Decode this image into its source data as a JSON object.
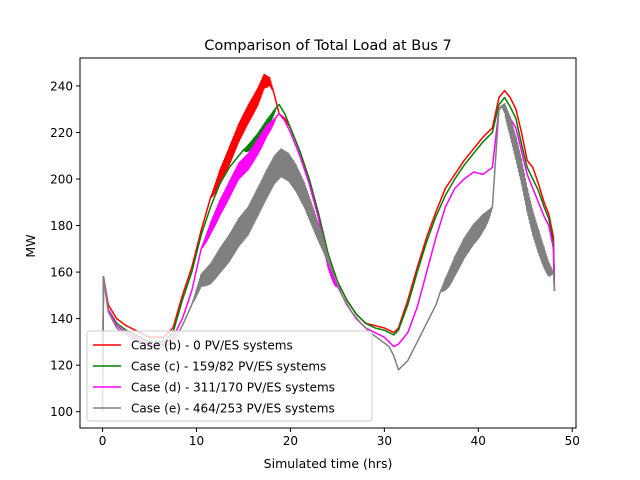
{
  "chart_data": {
    "type": "line",
    "title": "Comparison of Total Load at Bus 7",
    "xlabel": "Simulated time (hrs)",
    "ylabel": "MW",
    "xlim": [
      -2.4,
      50.4
    ],
    "ylim": [
      93.0,
      252.0
    ],
    "xticks": [
      0,
      10,
      20,
      30,
      40,
      50
    ],
    "yticks": [
      100,
      120,
      140,
      160,
      180,
      200,
      220,
      240
    ],
    "grid": false,
    "legend_position": "lower-left",
    "series": [
      {
        "name": "Case (b) - 0 PV/ES systems",
        "color": "#ff0000",
        "points": [
          [
            0.0,
            100
          ],
          [
            0.1,
            158
          ],
          [
            0.6,
            146
          ],
          [
            1.5,
            140
          ],
          [
            2.5,
            137
          ],
          [
            3.5,
            135
          ],
          [
            5.0,
            132
          ],
          [
            6.5,
            132
          ],
          [
            7.5,
            136
          ],
          [
            8.5,
            150
          ],
          [
            9.5,
            162
          ],
          [
            10.5,
            178
          ],
          [
            11.5,
            192
          ],
          [
            12.5,
            205
          ],
          [
            13.5,
            215
          ],
          [
            14.5,
            225
          ],
          [
            15.5,
            233
          ],
          [
            16.5,
            240
          ],
          [
            17.2,
            246
          ],
          [
            17.8,
            244
          ],
          [
            18.3,
            236
          ],
          [
            18.8,
            228
          ],
          [
            19.4,
            226
          ],
          [
            20.0,
            222
          ],
          [
            21.0,
            212
          ],
          [
            22.0,
            200
          ],
          [
            23.0,
            185
          ],
          [
            24.0,
            168
          ],
          [
            25.0,
            156
          ],
          [
            26.0,
            148
          ],
          [
            27.0,
            142
          ],
          [
            28.0,
            138
          ],
          [
            29.0,
            137
          ],
          [
            30.0,
            136
          ],
          [
            31.0,
            134
          ],
          [
            31.5,
            136
          ],
          [
            32.5,
            148
          ],
          [
            33.5,
            162
          ],
          [
            34.5,
            175
          ],
          [
            35.5,
            186
          ],
          [
            36.5,
            196
          ],
          [
            37.5,
            202
          ],
          [
            38.5,
            208
          ],
          [
            39.5,
            213
          ],
          [
            40.5,
            218
          ],
          [
            41.5,
            222
          ],
          [
            42.2,
            235
          ],
          [
            42.8,
            238
          ],
          [
            43.4,
            235
          ],
          [
            44.0,
            230
          ],
          [
            44.6,
            220
          ],
          [
            45.2,
            208
          ],
          [
            45.8,
            205
          ],
          [
            46.4,
            198
          ],
          [
            47.0,
            190
          ],
          [
            47.5,
            185
          ],
          [
            48.0,
            175
          ],
          [
            48.1,
            152
          ]
        ],
        "jitter": [
          [
            11.5,
            18.2,
            9
          ]
        ]
      },
      {
        "name": "Case (c) - 159/82 PV/ES systems",
        "color": "#008000",
        "points": [
          [
            0.0,
            100
          ],
          [
            0.1,
            158
          ],
          [
            0.6,
            144
          ],
          [
            1.5,
            138
          ],
          [
            2.5,
            135
          ],
          [
            3.5,
            133
          ],
          [
            5.0,
            130
          ],
          [
            6.5,
            130
          ],
          [
            7.5,
            134
          ],
          [
            8.5,
            148
          ],
          [
            9.5,
            160
          ],
          [
            10.5,
            176
          ],
          [
            11.5,
            188
          ],
          [
            12.5,
            198
          ],
          [
            13.5,
            205
          ],
          [
            14.5,
            210
          ],
          [
            15.5,
            215
          ],
          [
            16.5,
            220
          ],
          [
            17.5,
            226
          ],
          [
            18.3,
            230
          ],
          [
            18.8,
            232
          ],
          [
            19.4,
            228
          ],
          [
            20.0,
            222
          ],
          [
            21.0,
            212
          ],
          [
            22.0,
            200
          ],
          [
            23.0,
            185
          ],
          [
            24.0,
            168
          ],
          [
            25.0,
            156
          ],
          [
            26.0,
            148
          ],
          [
            27.0,
            142
          ],
          [
            28.0,
            138
          ],
          [
            29.0,
            136
          ],
          [
            30.0,
            135
          ],
          [
            31.0,
            133
          ],
          [
            31.5,
            135
          ],
          [
            32.5,
            146
          ],
          [
            33.5,
            160
          ],
          [
            34.5,
            173
          ],
          [
            35.5,
            184
          ],
          [
            36.5,
            193
          ],
          [
            37.5,
            200
          ],
          [
            38.5,
            206
          ],
          [
            39.5,
            211
          ],
          [
            40.5,
            216
          ],
          [
            41.5,
            220
          ],
          [
            42.2,
            232
          ],
          [
            42.8,
            235
          ],
          [
            43.4,
            231
          ],
          [
            44.0,
            226
          ],
          [
            44.6,
            215
          ],
          [
            45.2,
            205
          ],
          [
            45.8,
            200
          ],
          [
            46.4,
            195
          ],
          [
            47.0,
            188
          ],
          [
            47.5,
            183
          ],
          [
            48.0,
            172
          ],
          [
            48.1,
            152
          ]
        ],
        "jitter": [
          [
            15.0,
            18.5,
            4
          ]
        ]
      },
      {
        "name": "Case (d) - 311/170 PV/ES systems",
        "color": "#ff00ff",
        "points": [
          [
            0.0,
            100
          ],
          [
            0.1,
            158
          ],
          [
            0.6,
            144
          ],
          [
            1.5,
            137
          ],
          [
            2.5,
            134
          ],
          [
            3.5,
            132
          ],
          [
            5.0,
            129
          ],
          [
            6.5,
            129
          ],
          [
            7.5,
            132
          ],
          [
            8.5,
            140
          ],
          [
            9.5,
            152
          ],
          [
            10.5,
            170
          ],
          [
            11.5,
            182
          ],
          [
            12.5,
            192
          ],
          [
            13.5,
            200
          ],
          [
            14.5,
            208
          ],
          [
            15.5,
            212
          ],
          [
            16.5,
            218
          ],
          [
            17.5,
            224
          ],
          [
            18.3,
            226
          ],
          [
            18.8,
            228
          ],
          [
            19.4,
            225
          ],
          [
            20.0,
            220
          ],
          [
            21.0,
            210
          ],
          [
            22.0,
            198
          ],
          [
            23.0,
            183
          ],
          [
            24.0,
            166
          ],
          [
            25.0,
            154
          ],
          [
            26.0,
            146
          ],
          [
            27.0,
            140
          ],
          [
            28.0,
            136
          ],
          [
            29.0,
            134
          ],
          [
            30.0,
            132
          ],
          [
            31.0,
            128
          ],
          [
            31.5,
            129
          ],
          [
            32.5,
            134
          ],
          [
            33.5,
            145
          ],
          [
            34.5,
            160
          ],
          [
            35.5,
            175
          ],
          [
            36.5,
            188
          ],
          [
            37.5,
            196
          ],
          [
            38.5,
            200
          ],
          [
            39.5,
            203
          ],
          [
            40.5,
            202
          ],
          [
            41.5,
            205
          ],
          [
            42.2,
            230
          ],
          [
            42.8,
            232
          ],
          [
            43.4,
            226
          ],
          [
            44.0,
            222
          ],
          [
            44.6,
            212
          ],
          [
            45.2,
            202
          ],
          [
            45.8,
            196
          ],
          [
            46.4,
            190
          ],
          [
            47.0,
            184
          ],
          [
            47.5,
            180
          ],
          [
            48.0,
            170
          ],
          [
            48.1,
            152
          ]
        ],
        "jitter": [
          [
            10.5,
            18.5,
            8
          ],
          [
            23.0,
            25.0,
            4
          ]
        ]
      },
      {
        "name": "Case (e) - 464/253 PV/ES systems",
        "color": "#808080",
        "points": [
          [
            0.0,
            100
          ],
          [
            0.1,
            158
          ],
          [
            0.6,
            143
          ],
          [
            1.5,
            136
          ],
          [
            2.5,
            133
          ],
          [
            3.5,
            131
          ],
          [
            5.0,
            128
          ],
          [
            6.5,
            128
          ],
          [
            7.5,
            130
          ],
          [
            8.5,
            137
          ],
          [
            9.5,
            146
          ],
          [
            10.5,
            160
          ],
          [
            11.5,
            165
          ],
          [
            12.5,
            172
          ],
          [
            13.5,
            178
          ],
          [
            14.5,
            185
          ],
          [
            15.5,
            190
          ],
          [
            16.5,
            198
          ],
          [
            17.5,
            206
          ],
          [
            18.3,
            212
          ],
          [
            19.0,
            215
          ],
          [
            19.8,
            213
          ],
          [
            20.6,
            208
          ],
          [
            21.5,
            200
          ],
          [
            22.5,
            188
          ],
          [
            23.5,
            175
          ],
          [
            24.5,
            160
          ],
          [
            25.5,
            150
          ],
          [
            26.5,
            143
          ],
          [
            27.5,
            138
          ],
          [
            28.5,
            134
          ],
          [
            29.5,
            131
          ],
          [
            30.5,
            128
          ],
          [
            31.0,
            124
          ],
          [
            31.5,
            118
          ],
          [
            32.5,
            122
          ],
          [
            33.5,
            130
          ],
          [
            34.5,
            138
          ],
          [
            35.5,
            146
          ],
          [
            36.5,
            158
          ],
          [
            37.5,
            168
          ],
          [
            38.5,
            176
          ],
          [
            39.5,
            182
          ],
          [
            40.5,
            186
          ],
          [
            41.5,
            188
          ],
          [
            42.2,
            230
          ],
          [
            42.8,
            233
          ],
          [
            43.4,
            228
          ],
          [
            44.0,
            220
          ],
          [
            44.6,
            210
          ],
          [
            45.2,
            198
          ],
          [
            45.8,
            188
          ],
          [
            46.4,
            180
          ],
          [
            47.0,
            172
          ],
          [
            47.5,
            165
          ],
          [
            48.0,
            160
          ],
          [
            48.1,
            152
          ]
        ],
        "jitter": [
          [
            9.5,
            24.5,
            14
          ],
          [
            36.0,
            41.5,
            10
          ],
          [
            42.5,
            48.0,
            12
          ]
        ]
      }
    ]
  }
}
